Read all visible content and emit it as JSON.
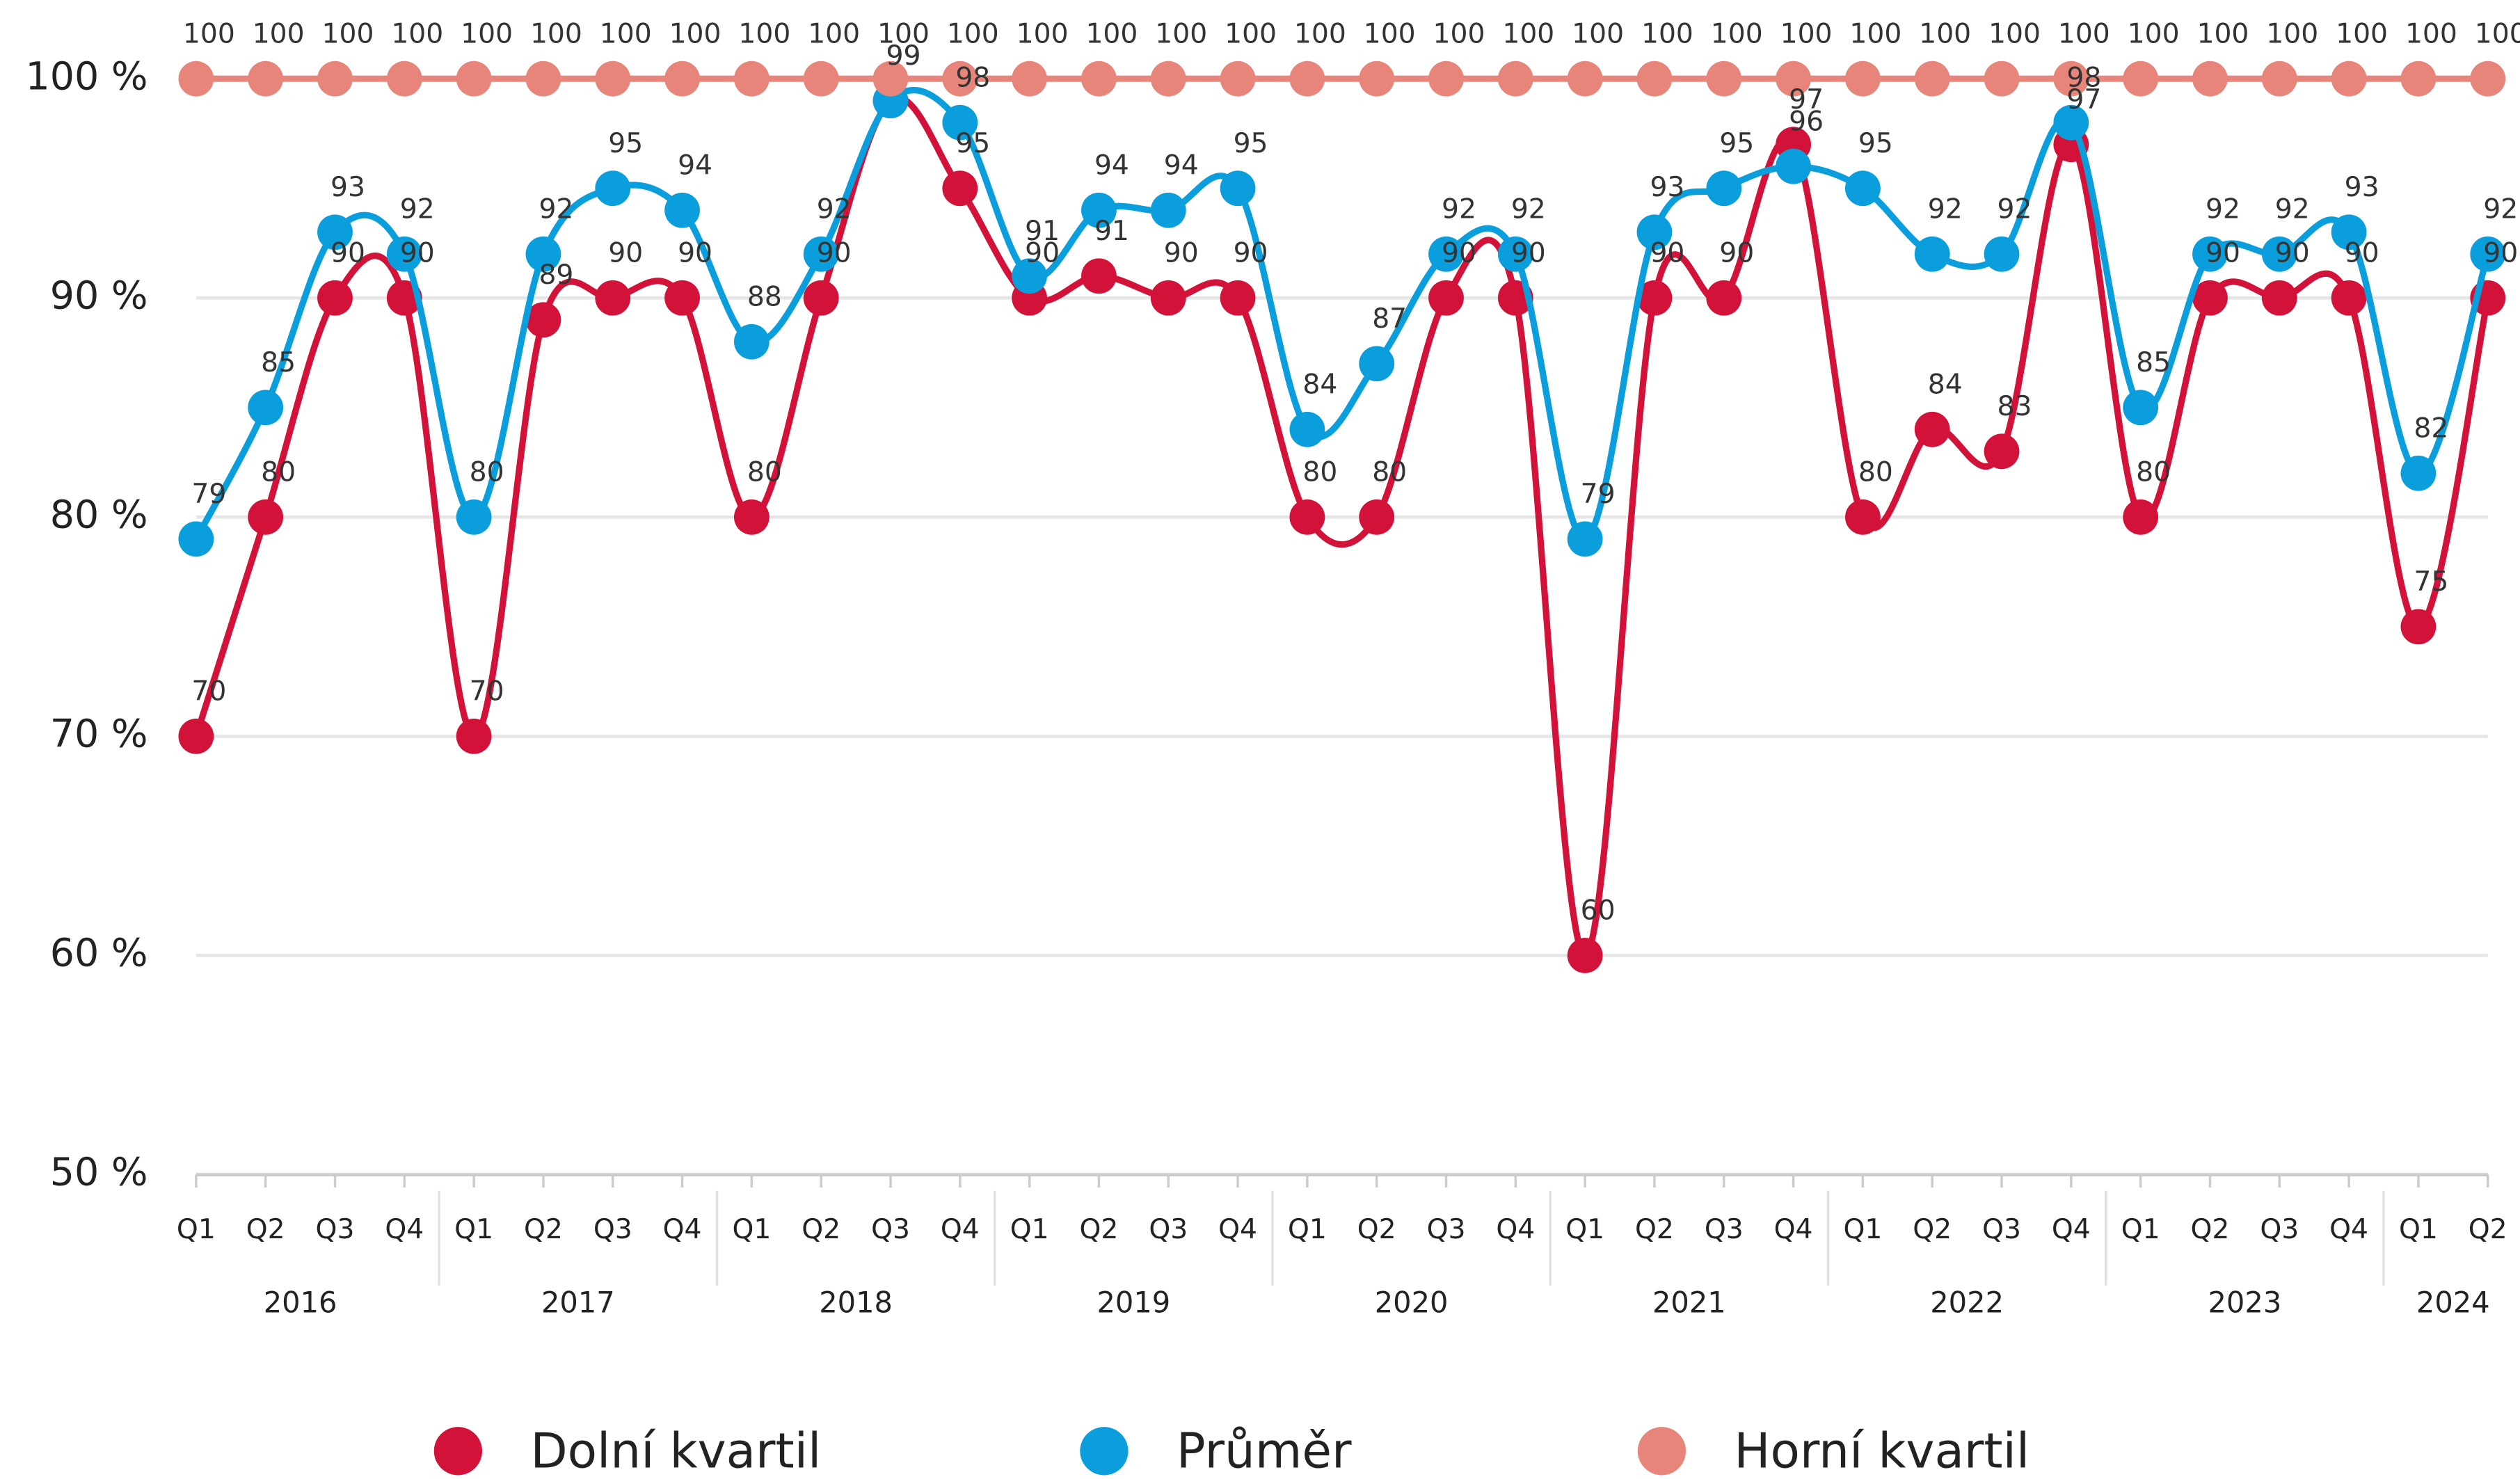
{
  "chart_data": {
    "type": "line",
    "categories": [
      "Q1",
      "Q2",
      "Q3",
      "Q4",
      "Q1",
      "Q2",
      "Q3",
      "Q4",
      "Q1",
      "Q2",
      "Q3",
      "Q4",
      "Q1",
      "Q2",
      "Q3",
      "Q4",
      "Q1",
      "Q2",
      "Q3",
      "Q4",
      "Q1",
      "Q2",
      "Q3",
      "Q4",
      "Q1",
      "Q2",
      "Q3",
      "Q4",
      "Q1",
      "Q2",
      "Q3",
      "Q4",
      "Q1",
      "Q2"
    ],
    "years": [
      "2016",
      "2017",
      "2018",
      "2019",
      "2020",
      "2021",
      "2022",
      "2023",
      "2024"
    ],
    "ylim": [
      50,
      100
    ],
    "yticks": [
      {
        "value": 50,
        "label": "50 %"
      },
      {
        "value": 60,
        "label": "60 %"
      },
      {
        "value": 70,
        "label": "70 %"
      },
      {
        "value": 80,
        "label": "80 %"
      },
      {
        "value": 90,
        "label": "90 %"
      },
      {
        "value": 100,
        "label": "100 %"
      }
    ],
    "grid": true,
    "legend": "bottom",
    "series": [
      {
        "name": "Dolní kvartil",
        "color": "#d3123a",
        "values": [
          70,
          80,
          90,
          90,
          70,
          89,
          90,
          90,
          80,
          90,
          99,
          95,
          90,
          91,
          90,
          90,
          80,
          80,
          90,
          90,
          60,
          90,
          90,
          97,
          80,
          84,
          83,
          97,
          80,
          90,
          90,
          90,
          75,
          90
        ]
      },
      {
        "name": "Průměr",
        "color": "#0a9fdc",
        "values": [
          79,
          85,
          93,
          92,
          80,
          92,
          95,
          94,
          88,
          92,
          99,
          98,
          91,
          94,
          94,
          95,
          84,
          87,
          92,
          92,
          79,
          93,
          95,
          96,
          95,
          92,
          92,
          98,
          85,
          92,
          92,
          93,
          82,
          92
        ]
      },
      {
        "name": "Horní kvartil",
        "color": "#e8857a",
        "values": [
          100,
          100,
          100,
          100,
          100,
          100,
          100,
          100,
          100,
          100,
          100,
          100,
          100,
          100,
          100,
          100,
          100,
          100,
          100,
          100,
          100,
          100,
          100,
          100,
          100,
          100,
          100,
          100,
          100,
          100,
          100,
          100,
          100,
          100
        ]
      }
    ]
  }
}
